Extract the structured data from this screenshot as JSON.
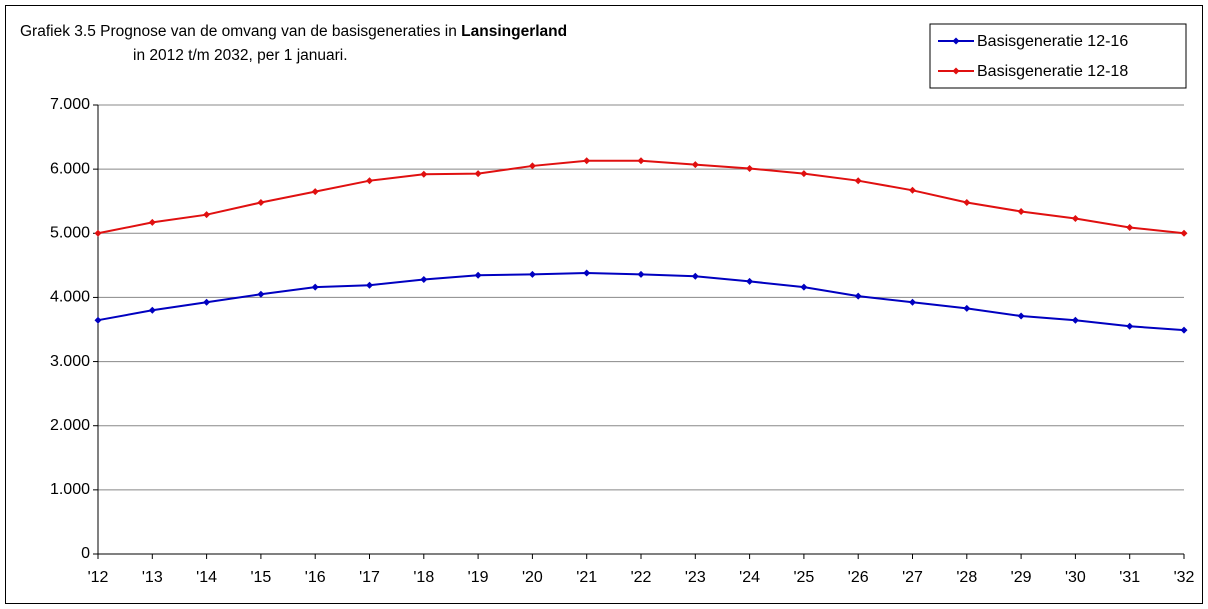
{
  "chart_data": {
    "type": "line",
    "title": "Grafiek 3.5 Prognose van de omvang van de basisgeneraties in",
    "title_bold": "Lansingerland",
    "subtitle": "in 2012 t/m 2032, per 1 januari.",
    "categories": [
      "'12",
      "'13",
      "'14",
      "'15",
      "'16",
      "'17",
      "'18",
      "'19",
      "'20",
      "'21",
      "'22",
      "'23",
      "'24",
      "'25",
      "'26",
      "'27",
      "'28",
      "'29",
      "'30",
      "'31",
      "'32"
    ],
    "series": [
      {
        "name": "Basisgeneratie 12-16",
        "color": "#0000c0",
        "values": [
          3645,
          3800,
          3925,
          4050,
          4160,
          4190,
          4280,
          4345,
          4360,
          4380,
          4360,
          4330,
          4250,
          4160,
          4020,
          3925,
          3830,
          3710,
          3645,
          3550,
          3490
        ]
      },
      {
        "name": "Basisgeneratie 12-18",
        "color": "#e01010",
        "values": [
          5000,
          5170,
          5290,
          5480,
          5650,
          5820,
          5920,
          5930,
          6050,
          6130,
          6130,
          6070,
          6010,
          5930,
          5820,
          5670,
          5480,
          5340,
          5230,
          5090,
          5000
        ]
      }
    ],
    "ylim": [
      0,
      7000
    ],
    "yticks": [
      0,
      {
        "value": 1000,
        "label": "1.000"
      },
      {
        "value": 2000,
        "label": "2.000"
      },
      {
        "value": 3000,
        "label": "3.000"
      },
      {
        "value": 4000,
        "label": "4.000"
      },
      {
        "value": 5000,
        "label": "5.000"
      },
      {
        "value": 6000,
        "label": "6.000"
      },
      {
        "value": 7000,
        "label": "7.000"
      }
    ],
    "grid": true,
    "legend": "top-right"
  }
}
